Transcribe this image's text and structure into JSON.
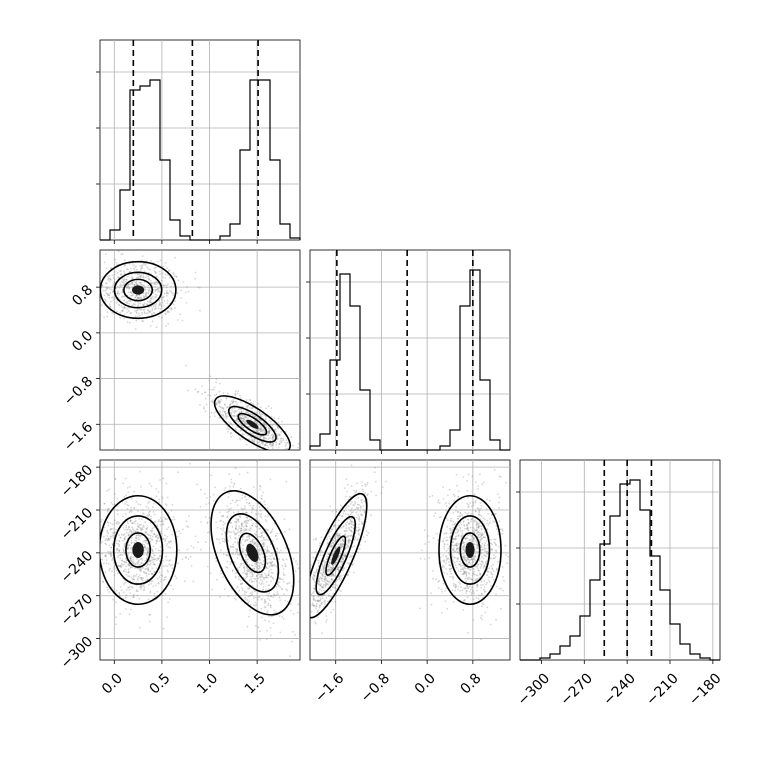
{
  "chart_data": {
    "type": "corner",
    "grid": true,
    "params": [
      {
        "range": [
          -0.15,
          1.95
        ],
        "ticks": [
          0.0,
          0.5,
          1.0,
          1.5
        ],
        "tick_labels": [
          "0.0",
          "0.5",
          "1.0",
          "1.5"
        ],
        "quantiles": [
          0.2,
          0.82,
          1.51
        ],
        "hist": {
          "edges": [
            -0.15,
            -0.045,
            0.06,
            0.165,
            0.27,
            0.375,
            0.48,
            0.585,
            0.69,
            0.795,
            0.9,
            1.005,
            1.11,
            1.215,
            1.32,
            1.425,
            1.53,
            1.635,
            1.74,
            1.845,
            1.95
          ],
          "counts": [
            0,
            0.05,
            0.25,
            0.75,
            0.77,
            0.8,
            0.4,
            0.1,
            0.02,
            0,
            0,
            0,
            0.02,
            0.08,
            0.45,
            0.8,
            0.8,
            0.4,
            0.08,
            0.01
          ]
        }
      },
      {
        "range": [
          -2.05,
          1.45
        ],
        "ticks": [
          -1.6,
          -0.8,
          0.0,
          0.8
        ],
        "tick_labels": [
          "−1.6",
          "−0.8",
          "0.0",
          "0.8"
        ],
        "quantiles": [
          -1.58,
          -0.35,
          0.8
        ],
        "hist": {
          "edges": [
            -2.05,
            -1.875,
            -1.7,
            -1.525,
            -1.35,
            -1.175,
            -1.0,
            -0.825,
            -0.65,
            -0.475,
            -0.3,
            -0.125,
            0.05,
            0.225,
            0.4,
            0.575,
            0.75,
            0.925,
            1.1,
            1.275,
            1.45
          ],
          "counts": [
            0.02,
            0.08,
            0.45,
            0.88,
            0.72,
            0.3,
            0.05,
            0.0,
            0,
            0,
            0,
            0,
            0,
            0.02,
            0.1,
            0.72,
            0.9,
            0.35,
            0.05,
            0
          ]
        }
      },
      {
        "range": [
          -315,
          -175
        ],
        "ticks": [
          -300,
          -270,
          -240,
          -210,
          -180
        ],
        "tick_labels": [
          "−300",
          "−270",
          "−240",
          "−210",
          "−180"
        ],
        "quantiles": [
          -256,
          -240,
          -223
        ],
        "hist": {
          "edges": [
            -315,
            -308,
            -301,
            -294,
            -287,
            -280,
            -273,
            -266,
            -259,
            -252,
            -245,
            -238,
            -231,
            -224,
            -217,
            -210,
            -203,
            -196,
            -189,
            -182,
            -175
          ],
          "counts": [
            0,
            0,
            0.01,
            0.03,
            0.07,
            0.12,
            0.22,
            0.4,
            0.58,
            0.72,
            0.88,
            0.9,
            0.75,
            0.52,
            0.35,
            0.18,
            0.08,
            0.03,
            0.01,
            0
          ]
        }
      }
    ],
    "pairs": [
      {
        "x_param": 0,
        "y_param": 1,
        "clusters": [
          {
            "center": [
              0.25,
              0.75
            ],
            "sx": 0.16,
            "sy": 0.2,
            "rho": 0.0,
            "n": 700,
            "levels": [
              0.6,
              1.0,
              1.6
            ]
          },
          {
            "center": [
              1.45,
              -1.6
            ],
            "sx": 0.16,
            "sy": 0.2,
            "rho": -0.75,
            "n": 700,
            "levels": [
              0.6,
              1.0,
              1.6
            ]
          }
        ]
      },
      {
        "x_param": 0,
        "y_param": 2,
        "clusters": [
          {
            "center": [
              0.25,
              -238
            ],
            "sx": 0.15,
            "sy": 14,
            "rho": 0.0,
            "n": 900,
            "levels": [
              0.55,
              1.1,
              1.75
            ]
          },
          {
            "center": [
              1.45,
              -240
            ],
            "sx": 0.16,
            "sy": 16,
            "rho": -0.45,
            "n": 900,
            "levels": [
              0.55,
              1.1,
              1.75
            ]
          }
        ]
      },
      {
        "x_param": 1,
        "y_param": 2,
        "clusters": [
          {
            "center": [
              -1.6,
              -242
            ],
            "sx": 0.2,
            "sy": 16,
            "rho": 0.8,
            "n": 900,
            "levels": [
              0.55,
              1.1,
              1.75
            ]
          },
          {
            "center": [
              0.75,
              -238
            ],
            "sx": 0.2,
            "sy": 14,
            "rho": 0.0,
            "n": 900,
            "levels": [
              0.55,
              1.1,
              1.75
            ]
          }
        ]
      }
    ]
  },
  "colors": {
    "points": "#8c8c8c",
    "fill_levels": [
      "#ffffff",
      "#d8d8d8",
      "#a8a8a8",
      "#6a6a6a"
    ],
    "core": "#1a1a1a"
  }
}
